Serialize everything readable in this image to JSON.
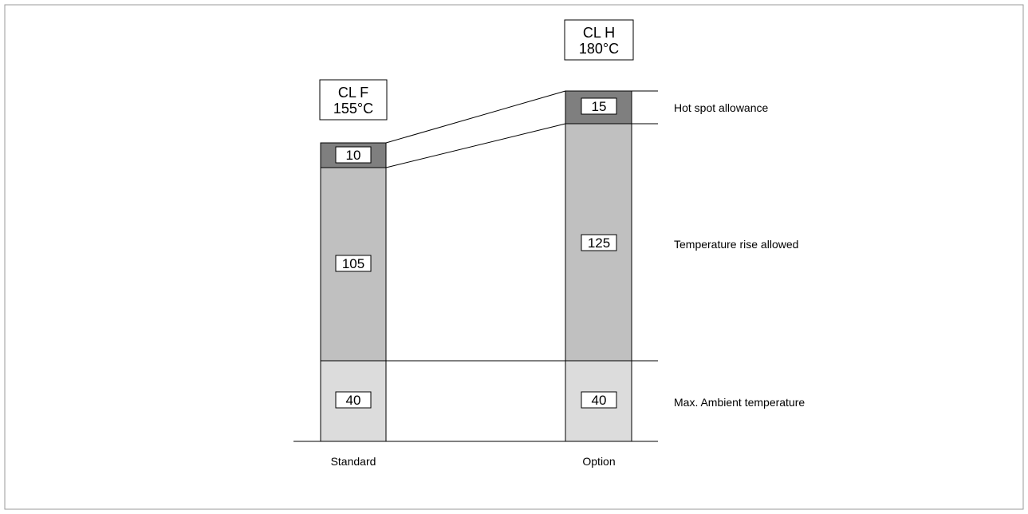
{
  "columns": [
    {
      "id": "standard",
      "caption": "Standard",
      "class_label": {
        "line1": "CL F",
        "line2": "155°C"
      },
      "segments": {
        "ambient": 40,
        "rise": 105,
        "hotspot": 10
      },
      "value_labels": {
        "ambient": "40",
        "rise": "105",
        "hotspot": "10"
      }
    },
    {
      "id": "option",
      "caption": "Option",
      "class_label": {
        "line1": "CL H",
        "line2": "180°C"
      },
      "segments": {
        "ambient": 40,
        "rise": 125,
        "hotspot": 15
      },
      "value_labels": {
        "ambient": "40",
        "rise": "125",
        "hotspot": "15"
      }
    }
  ],
  "legend": {
    "hotspot": "Hot spot allowance",
    "rise": "Temperature rise allowed",
    "ambient": "Max. Ambient temperature"
  },
  "colors": {
    "ambient": "#dcdcdc",
    "rise": "#c0c0c0",
    "hotspot": "#7f7f7f",
    "frame": "#999999"
  }
}
